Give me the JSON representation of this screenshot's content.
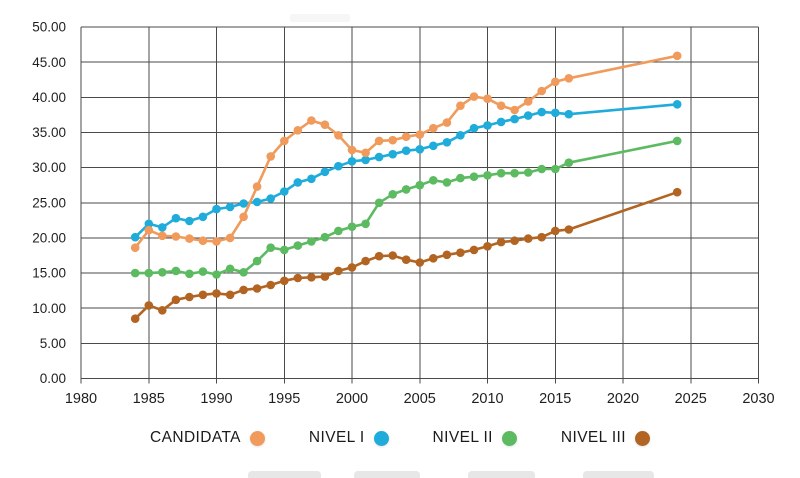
{
  "chart_data": {
    "type": "line",
    "title": "",
    "xlabel": "",
    "ylabel": "",
    "xlim": [
      1980,
      2030
    ],
    "ylim": [
      0,
      50
    ],
    "grid": true,
    "legend_position": "bottom",
    "x_ticks": [
      1980,
      1985,
      1990,
      1995,
      2000,
      2005,
      2010,
      2015,
      2020,
      2025,
      2030
    ],
    "y_ticks": [
      0,
      5,
      10,
      15,
      20,
      25,
      30,
      35,
      40,
      45,
      50
    ],
    "y_tick_labels": [
      "0.00",
      "5.00",
      "10.00",
      "15.00",
      "20.00",
      "25.00",
      "30.00",
      "35.00",
      "40.00",
      "45.00",
      "50.00"
    ],
    "x": [
      1984,
      1985,
      1986,
      1987,
      1988,
      1989,
      1990,
      1991,
      1992,
      1993,
      1994,
      1995,
      1996,
      1997,
      1998,
      1999,
      2000,
      2001,
      2002,
      2003,
      2004,
      2005,
      2006,
      2007,
      2008,
      2009,
      2010,
      2011,
      2012,
      2013,
      2014,
      2015,
      2016,
      2024
    ],
    "series": [
      {
        "name": "CANDIDATA",
        "color": "#F09A5B",
        "values": [
          18.6,
          21.1,
          20.3,
          20.2,
          19.9,
          19.6,
          19.5,
          20.0,
          23.0,
          27.3,
          31.6,
          33.8,
          35.3,
          36.7,
          36.1,
          34.6,
          32.5,
          32.1,
          33.8,
          33.9,
          34.4,
          34.7,
          35.6,
          36.4,
          38.8,
          40.1,
          39.8,
          38.8,
          38.2,
          39.4,
          40.9,
          42.2,
          42.7,
          45.9
        ]
      },
      {
        "name": "NIVEL I",
        "color": "#1FACDB",
        "values": [
          20.1,
          22.0,
          21.5,
          22.8,
          22.4,
          23.0,
          24.1,
          24.4,
          24.9,
          25.1,
          25.6,
          26.6,
          27.9,
          28.4,
          29.4,
          30.2,
          30.9,
          31.1,
          31.5,
          31.9,
          32.4,
          32.6,
          33.1,
          33.6,
          34.6,
          35.6,
          36.0,
          36.5,
          36.9,
          37.4,
          37.9,
          37.8,
          37.6,
          39.0
        ]
      },
      {
        "name": "NIVEL II",
        "color": "#5CBA60",
        "values": [
          15.0,
          15.0,
          15.1,
          15.3,
          14.9,
          15.2,
          14.8,
          15.6,
          15.1,
          16.7,
          18.6,
          18.3,
          18.9,
          19.5,
          20.1,
          21.0,
          21.6,
          22.0,
          25.0,
          26.2,
          26.9,
          27.5,
          28.2,
          27.9,
          28.5,
          28.7,
          28.9,
          29.2,
          29.2,
          29.3,
          29.8,
          29.8,
          30.7,
          33.8
        ]
      },
      {
        "name": "NIVEL III",
        "color": "#B26422",
        "values": [
          8.5,
          10.4,
          9.7,
          11.2,
          11.6,
          11.9,
          12.1,
          11.9,
          12.6,
          12.8,
          13.3,
          13.9,
          14.3,
          14.4,
          14.5,
          15.3,
          15.8,
          16.7,
          17.4,
          17.5,
          16.9,
          16.5,
          17.1,
          17.6,
          17.9,
          18.3,
          18.8,
          19.4,
          19.6,
          19.9,
          20.1,
          21.0,
          21.2,
          26.5
        ]
      }
    ],
    "style": {
      "grid_color": "#4a4a4a",
      "text_color": "#1f1f1f",
      "line_width": 2.6,
      "dot_radius": 4.3
    }
  }
}
